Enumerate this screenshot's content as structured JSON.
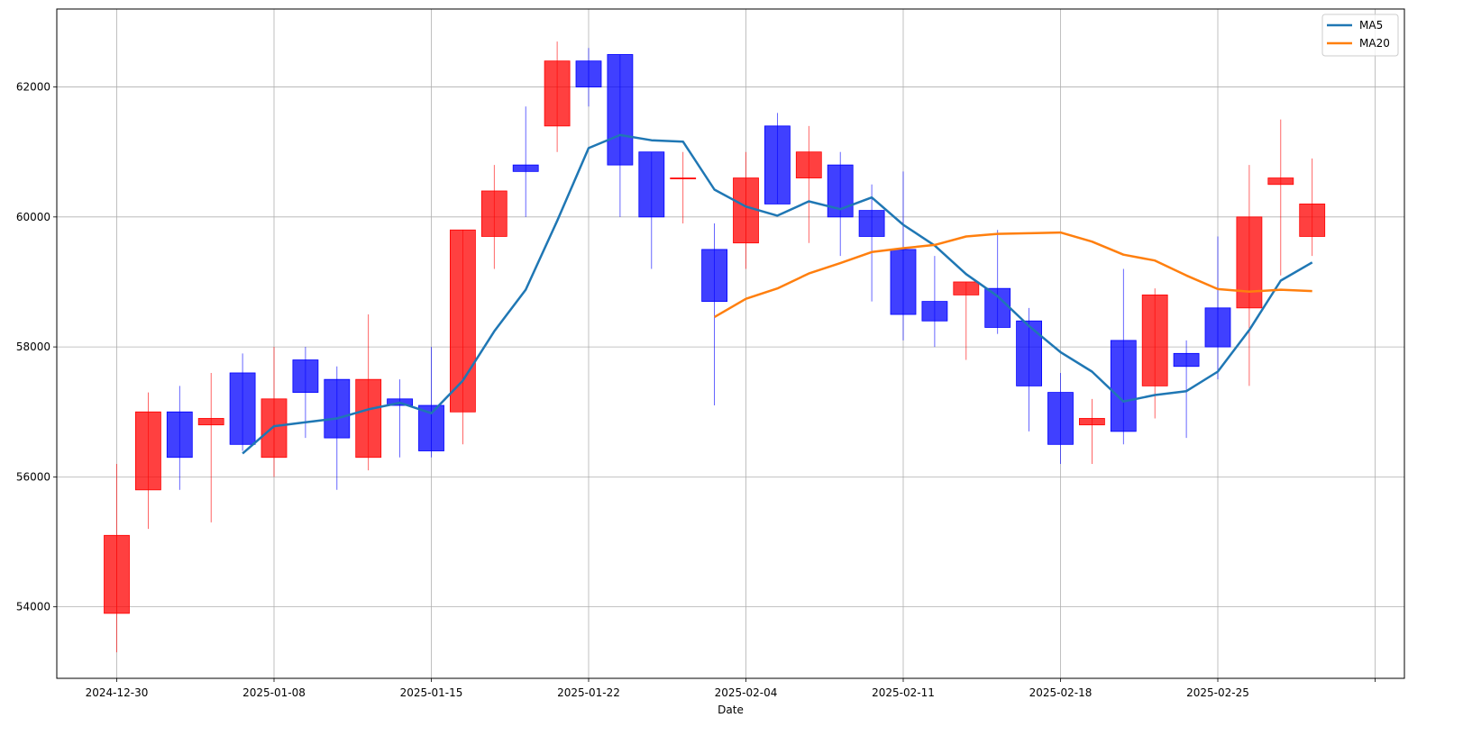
{
  "chart_data": {
    "type": "candlestick",
    "xlabel": "Date",
    "ylabel": "",
    "grid": true,
    "legend_placement": "top-right",
    "ylim": [
      52900,
      63200
    ],
    "y_ticks": [
      54000,
      56000,
      58000,
      60000,
      62000
    ],
    "x_tick_labels": [
      "2024-12-30",
      "2025-01-08",
      "2025-01-15",
      "2025-01-22",
      "2025-02-04",
      "2025-02-11",
      "2025-02-18",
      "2025-02-25",
      ""
    ],
    "x_tick_positions": [
      0,
      5,
      10,
      15,
      20,
      25,
      30,
      35,
      40
    ],
    "colors": {
      "up": "#ff0000",
      "down": "#0000ff",
      "ma5": "#1f77b4",
      "ma20": "#ff7f0e",
      "grid": "#b0b0b0"
    },
    "legend": [
      {
        "name": "MA5",
        "color": "#1f77b4"
      },
      {
        "name": "MA20",
        "color": "#ff7f0e"
      }
    ],
    "candles": [
      {
        "i": 0,
        "open": 53900,
        "close": 55100,
        "high": 56200,
        "low": 53300
      },
      {
        "i": 1,
        "open": 55800,
        "close": 57000,
        "high": 57300,
        "low": 55200
      },
      {
        "i": 2,
        "open": 57000,
        "close": 56300,
        "high": 57400,
        "low": 55800
      },
      {
        "i": 3,
        "open": 56800,
        "close": 56900,
        "high": 57600,
        "low": 55300
      },
      {
        "i": 4,
        "open": 57600,
        "close": 56500,
        "high": 57900,
        "low": 56400
      },
      {
        "i": 5,
        "open": 56300,
        "close": 57200,
        "high": 58000,
        "low": 56000
      },
      {
        "i": 6,
        "open": 57800,
        "close": 57300,
        "high": 58000,
        "low": 56600
      },
      {
        "i": 7,
        "open": 57500,
        "close": 56600,
        "high": 57700,
        "low": 55800
      },
      {
        "i": 8,
        "open": 56300,
        "close": 57500,
        "high": 58500,
        "low": 56100
      },
      {
        "i": 9,
        "open": 57200,
        "close": 57100,
        "high": 57500,
        "low": 56300
      },
      {
        "i": 10,
        "open": 57100,
        "close": 56400,
        "high": 58000,
        "low": 56300
      },
      {
        "i": 11,
        "open": 57000,
        "close": 59800,
        "high": 59800,
        "low": 56500
      },
      {
        "i": 12,
        "open": 59700,
        "close": 60400,
        "high": 60800,
        "low": 59200
      },
      {
        "i": 13,
        "open": 60800,
        "close": 60700,
        "high": 61700,
        "low": 60000
      },
      {
        "i": 14,
        "open": 61400,
        "close": 62400,
        "high": 62700,
        "low": 61000
      },
      {
        "i": 15,
        "open": 62400,
        "close": 62000,
        "high": 62600,
        "low": 61700
      },
      {
        "i": 16,
        "open": 62500,
        "close": 60800,
        "high": 62500,
        "low": 60000
      },
      {
        "i": 17,
        "open": 61000,
        "close": 60000,
        "high": 61000,
        "low": 59200
      },
      {
        "i": 18,
        "open": 60600,
        "close": 60600,
        "high": 61000,
        "low": 59900
      },
      {
        "i": 19,
        "open": 59500,
        "close": 58700,
        "high": 59900,
        "low": 57100
      },
      {
        "i": 20,
        "open": 59600,
        "close": 60600,
        "high": 61000,
        "low": 59200
      },
      {
        "i": 21,
        "open": 61400,
        "close": 60200,
        "high": 61600,
        "low": 60200
      },
      {
        "i": 22,
        "open": 60600,
        "close": 61000,
        "high": 61400,
        "low": 59600
      },
      {
        "i": 23,
        "open": 60800,
        "close": 60000,
        "high": 61000,
        "low": 59400
      },
      {
        "i": 24,
        "open": 60100,
        "close": 59700,
        "high": 60500,
        "low": 58700
      },
      {
        "i": 25,
        "open": 59500,
        "close": 58500,
        "high": 60700,
        "low": 58100
      },
      {
        "i": 26,
        "open": 58700,
        "close": 58400,
        "high": 59400,
        "low": 58000
      },
      {
        "i": 27,
        "open": 58800,
        "close": 59000,
        "high": 59000,
        "low": 57800
      },
      {
        "i": 28,
        "open": 58900,
        "close": 58300,
        "high": 59800,
        "low": 58200
      },
      {
        "i": 29,
        "open": 58400,
        "close": 57400,
        "high": 58600,
        "low": 56700
      },
      {
        "i": 30,
        "open": 57300,
        "close": 56500,
        "high": 57600,
        "low": 56200
      },
      {
        "i": 31,
        "open": 56800,
        "close": 56900,
        "high": 57200,
        "low": 56200
      },
      {
        "i": 32,
        "open": 58100,
        "close": 56700,
        "high": 59200,
        "low": 56500
      },
      {
        "i": 33,
        "open": 57400,
        "close": 58800,
        "high": 58900,
        "low": 56900
      },
      {
        "i": 34,
        "open": 57900,
        "close": 57700,
        "high": 58100,
        "low": 56600
      },
      {
        "i": 35,
        "open": 58600,
        "close": 58000,
        "high": 59700,
        "low": 57500
      },
      {
        "i": 36,
        "open": 58600,
        "close": 60000,
        "high": 60800,
        "low": 57400
      },
      {
        "i": 37,
        "open": 60500,
        "close": 60600,
        "high": 61500,
        "low": 59100
      },
      {
        "i": 38,
        "open": 59700,
        "close": 60200,
        "high": 60900,
        "low": 59400
      }
    ],
    "series": [
      {
        "name": "MA5",
        "points": [
          [
            4,
            56360
          ],
          [
            5,
            56780
          ],
          [
            6,
            56840
          ],
          [
            7,
            56900
          ],
          [
            8,
            57040
          ],
          [
            9,
            57140
          ],
          [
            10,
            56980
          ],
          [
            11,
            57480
          ],
          [
            12,
            58240
          ],
          [
            13,
            58880
          ],
          [
            14,
            59940
          ],
          [
            15,
            61060
          ],
          [
            16,
            61260
          ],
          [
            17,
            61180
          ],
          [
            18,
            61160
          ],
          [
            19,
            60420
          ],
          [
            20,
            60160
          ],
          [
            21,
            60020
          ],
          [
            22,
            60240
          ],
          [
            23,
            60120
          ],
          [
            24,
            60300
          ],
          [
            25,
            59880
          ],
          [
            26,
            59560
          ],
          [
            27,
            59120
          ],
          [
            28,
            58780
          ],
          [
            29,
            58320
          ],
          [
            30,
            57920
          ],
          [
            31,
            57620
          ],
          [
            32,
            57160
          ],
          [
            33,
            57260
          ],
          [
            34,
            57320
          ],
          [
            35,
            57620
          ],
          [
            36,
            58260
          ],
          [
            37,
            59020
          ],
          [
            38,
            59300
          ]
        ]
      },
      {
        "name": "MA20",
        "points": [
          [
            19,
            58460
          ],
          [
            20,
            58740
          ],
          [
            21,
            58900
          ],
          [
            22,
            59130
          ],
          [
            23,
            59290
          ],
          [
            24,
            59460
          ],
          [
            25,
            59520
          ],
          [
            26,
            59570
          ],
          [
            27,
            59700
          ],
          [
            28,
            59740
          ],
          [
            29,
            59750
          ],
          [
            30,
            59760
          ],
          [
            31,
            59620
          ],
          [
            32,
            59420
          ],
          [
            33,
            59330
          ],
          [
            34,
            59100
          ],
          [
            35,
            58890
          ],
          [
            36,
            58850
          ],
          [
            37,
            58880
          ],
          [
            38,
            58860
          ]
        ]
      }
    ]
  }
}
